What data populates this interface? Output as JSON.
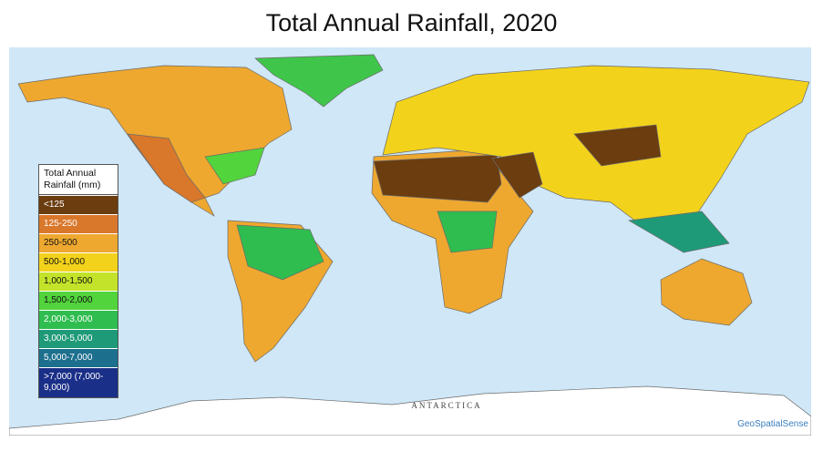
{
  "title": "Total Annual Rainfall, 2020",
  "map": {
    "legend": {
      "title": "Total Annual Rainfall (mm)",
      "items": [
        {
          "label": "<125",
          "color": "#6b3d0f"
        },
        {
          "label": "125-250",
          "color": "#d9772b"
        },
        {
          "label": "250-500",
          "color": "#eea82f"
        },
        {
          "label": "500-1,000",
          "color": "#f3d21b"
        },
        {
          "label": "1,000-1,500",
          "color": "#c3e32a"
        },
        {
          "label": "1,500-2,000",
          "color": "#52d43c"
        },
        {
          "label": "2,000-3,000",
          "color": "#2fbd4f"
        },
        {
          "label": "3,000-5,000",
          "color": "#1f9a78"
        },
        {
          "label": "5,000-7,000",
          "color": "#1d6f8e"
        },
        {
          "label": ">7,000 (7,000-9,000)",
          "color": "#1a2f88"
        }
      ]
    },
    "region_label": "ANTARCTICA",
    "credit": "GeoSpatialSense"
  }
}
